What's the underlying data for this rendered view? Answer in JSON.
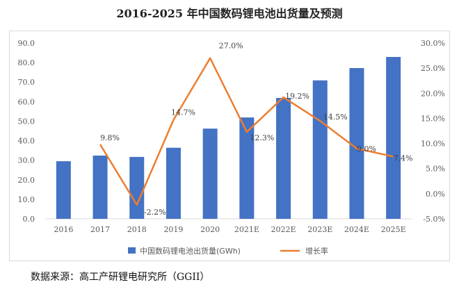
{
  "page": {
    "title": "2016-2025 年中国数码锂电池出货量及预测",
    "source": "数据来源：高工产研锂电研究所（GGII）"
  },
  "colors": {
    "bar": "#4472c4",
    "line": "#ed7d31",
    "axis": "#d9d9d9"
  },
  "chart_data": {
    "type": "bar",
    "categories": [
      "2016",
      "2017",
      "2018",
      "2019",
      "2020",
      "2021E",
      "2022E",
      "2023E",
      "2024E",
      "2025E"
    ],
    "series": [
      {
        "name": "中国数码锂电池出货量(GWh)",
        "type": "bar",
        "axis": "left",
        "values": [
          29.5,
          32.4,
          31.7,
          36.4,
          46.2,
          51.9,
          61.9,
          70.9,
          77.2,
          82.9
        ]
      },
      {
        "name": "增长率",
        "type": "line",
        "axis": "right",
        "values": [
          null,
          9.8,
          -2.2,
          14.7,
          27.0,
          12.3,
          19.2,
          14.5,
          9.0,
          7.4
        ],
        "labels": [
          "",
          "9.8%",
          "-2.2%",
          "14.7%",
          "27.0%",
          "12.3%",
          "19.2%",
          "14.5%",
          "9.0%",
          "7.4%"
        ]
      }
    ],
    "y_left": {
      "min": 0,
      "max": 90,
      "step": 10,
      "tick_labels": [
        "0.0",
        "10.0",
        "20.0",
        "30.0",
        "40.0",
        "50.0",
        "60.0",
        "70.0",
        "80.0",
        "90.0"
      ]
    },
    "y_right": {
      "min": -5,
      "max": 30,
      "step": 5,
      "tick_labels": [
        "-5.0%",
        "0.0%",
        "5.0%",
        "10.0%",
        "15.0%",
        "20.0%",
        "25.0%",
        "30.0%"
      ]
    },
    "legend": "bottom",
    "grid": false
  }
}
